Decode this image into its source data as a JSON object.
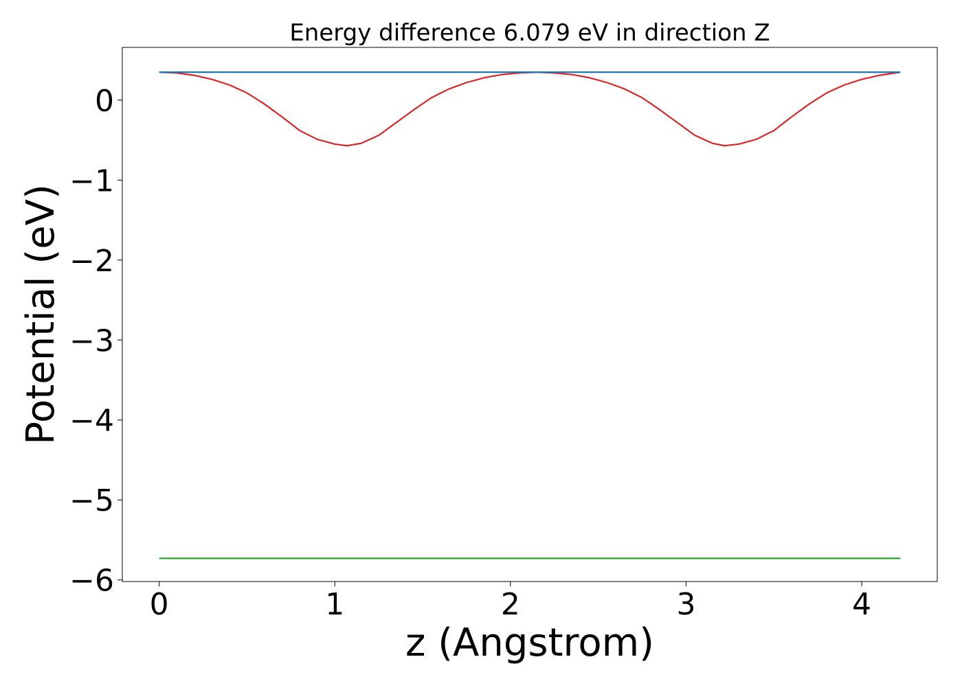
{
  "chart_data": {
    "type": "line",
    "title": "Energy difference 6.079 eV in direction Z",
    "xlabel": "z (Angstrom)",
    "ylabel": "Potential (eV)",
    "xlim": [
      -0.21,
      4.43
    ],
    "ylim": [
      -6.02,
      0.66
    ],
    "xticks": [
      0,
      1,
      2,
      3,
      4
    ],
    "xtick_labels": [
      "0",
      "1",
      "2",
      "3",
      "4"
    ],
    "yticks": [
      0,
      -1,
      -2,
      -3,
      -4,
      -5,
      -6
    ],
    "ytick_labels": [
      "0",
      "−1",
      "−2",
      "−3",
      "−4",
      "−5",
      "−6"
    ],
    "grid": false,
    "series": [
      {
        "color": "#d62728",
        "x": [
          0.0,
          0.1,
          0.2,
          0.3,
          0.4,
          0.5,
          0.6,
          0.7,
          0.8,
          0.9,
          1.0,
          1.07,
          1.15,
          1.25,
          1.35,
          1.45,
          1.55,
          1.65,
          1.75,
          1.85,
          1.95,
          2.05,
          2.15,
          2.25,
          2.35,
          2.45,
          2.55,
          2.65,
          2.75,
          2.85,
          2.95,
          3.05,
          3.15,
          3.22,
          3.3,
          3.4,
          3.5,
          3.6,
          3.7,
          3.8,
          3.9,
          4.0,
          4.1,
          4.22
        ],
        "y": [
          0.35,
          0.34,
          0.31,
          0.26,
          0.19,
          0.09,
          -0.05,
          -0.21,
          -0.38,
          -0.49,
          -0.55,
          -0.57,
          -0.54,
          -0.44,
          -0.28,
          -0.12,
          0.03,
          0.14,
          0.22,
          0.28,
          0.32,
          0.34,
          0.35,
          0.34,
          0.32,
          0.28,
          0.22,
          0.14,
          0.03,
          -0.12,
          -0.28,
          -0.44,
          -0.54,
          -0.57,
          -0.55,
          -0.49,
          -0.38,
          -0.21,
          -0.05,
          0.09,
          0.19,
          0.26,
          0.31,
          0.35
        ]
      },
      {
        "color": "#1f77b4",
        "x": [
          0.0,
          4.22
        ],
        "y": [
          0.35,
          0.35
        ]
      },
      {
        "color": "#2ca02c",
        "x": [
          0.0,
          4.22
        ],
        "y": [
          -5.73,
          -5.73
        ]
      }
    ]
  }
}
